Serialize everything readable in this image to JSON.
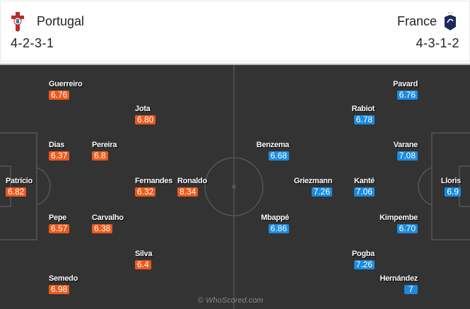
{
  "home": {
    "name": "Portugal",
    "formation": "4-2-3-1",
    "color": "#ed5a1c",
    "crest_icon": "portugal-crest-icon",
    "players": [
      {
        "name": "Guerreiro",
        "rating": "6.76"
      },
      {
        "name": "Jota",
        "rating": "6.80"
      },
      {
        "name": "Dias",
        "rating": "6.37"
      },
      {
        "name": "Pereira",
        "rating": "6.8"
      },
      {
        "name": "Patrício",
        "rating": "6.82"
      },
      {
        "name": "Fernandes",
        "rating": "6.32"
      },
      {
        "name": "Ronaldo",
        "rating": "8.34"
      },
      {
        "name": "Pepe",
        "rating": "6.57"
      },
      {
        "name": "Carvalho",
        "rating": "6.38"
      },
      {
        "name": "Silva",
        "rating": "6.4"
      },
      {
        "name": "Semedo",
        "rating": "6.98"
      }
    ]
  },
  "away": {
    "name": "France",
    "formation": "4-3-1-2",
    "color": "#1b8be0",
    "crest_icon": "france-crest-icon",
    "players": [
      {
        "name": "Pavard",
        "rating": "6.76"
      },
      {
        "name": "Rabiot",
        "rating": "6.78"
      },
      {
        "name": "Benzema",
        "rating": "6.68"
      },
      {
        "name": "Varane",
        "rating": "7.08"
      },
      {
        "name": "Griezmann",
        "rating": "7.26"
      },
      {
        "name": "Kanté",
        "rating": "7.06"
      },
      {
        "name": "Lloris",
        "rating": "6.9"
      },
      {
        "name": "Mbappé",
        "rating": "6.86"
      },
      {
        "name": "Kimpembe",
        "rating": "6.70"
      },
      {
        "name": "Pogba",
        "rating": "7.26"
      },
      {
        "name": "Hernández",
        "rating": "7"
      }
    ]
  },
  "watermark": "© WhoScored.com"
}
